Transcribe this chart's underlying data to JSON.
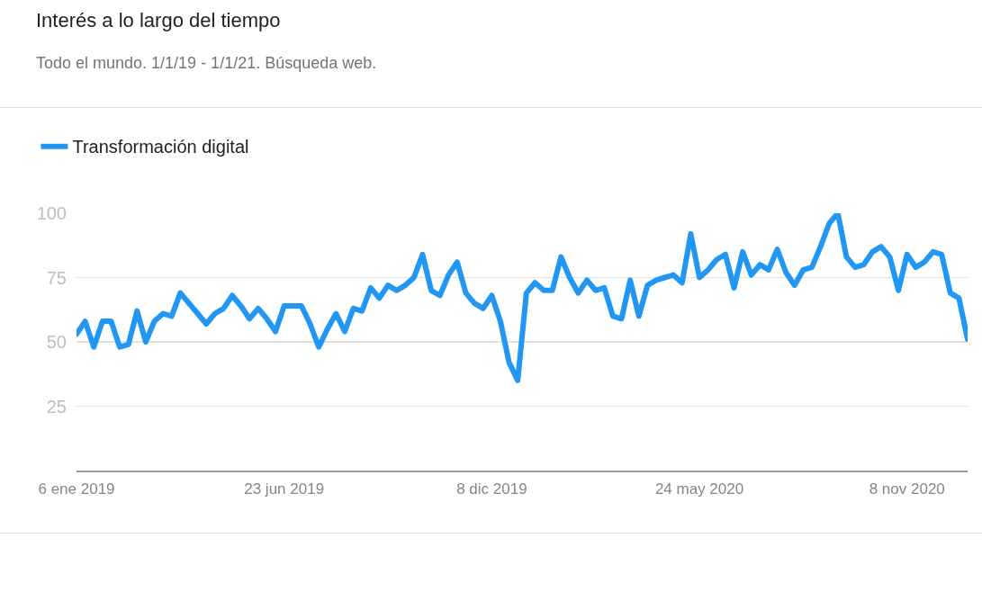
{
  "chart_data": {
    "type": "line",
    "title": "Interés a lo largo del tiempo",
    "subtitle": "Todo el mundo. 1/1/19 - 1/1/21. Búsqueda web.",
    "x": [
      "2019-01-06",
      "2019-01-13",
      "2019-01-20",
      "2019-01-27",
      "2019-02-03",
      "2019-02-10",
      "2019-02-17",
      "2019-02-24",
      "2019-03-03",
      "2019-03-10",
      "2019-03-17",
      "2019-03-24",
      "2019-03-31",
      "2019-04-07",
      "2019-04-14",
      "2019-04-21",
      "2019-04-28",
      "2019-05-05",
      "2019-05-12",
      "2019-05-19",
      "2019-05-26",
      "2019-06-02",
      "2019-06-09",
      "2019-06-16",
      "2019-06-23",
      "2019-06-30",
      "2019-07-07",
      "2019-07-14",
      "2019-07-21",
      "2019-07-28",
      "2019-08-04",
      "2019-08-11",
      "2019-08-18",
      "2019-08-25",
      "2019-09-01",
      "2019-09-08",
      "2019-09-15",
      "2019-09-22",
      "2019-09-29",
      "2019-10-06",
      "2019-10-13",
      "2019-10-20",
      "2019-10-27",
      "2019-11-03",
      "2019-11-10",
      "2019-11-17",
      "2019-11-24",
      "2019-12-01",
      "2019-12-08",
      "2019-12-15",
      "2019-12-22",
      "2019-12-29",
      "2020-01-05",
      "2020-01-12",
      "2020-01-19",
      "2020-01-26",
      "2020-02-02",
      "2020-02-09",
      "2020-02-16",
      "2020-02-23",
      "2020-03-01",
      "2020-03-08",
      "2020-03-15",
      "2020-03-22",
      "2020-03-29",
      "2020-04-05",
      "2020-04-12",
      "2020-04-19",
      "2020-04-26",
      "2020-05-03",
      "2020-05-10",
      "2020-05-17",
      "2020-05-24",
      "2020-05-31",
      "2020-06-07",
      "2020-06-14",
      "2020-06-21",
      "2020-06-28",
      "2020-07-05",
      "2020-07-12",
      "2020-07-19",
      "2020-07-26",
      "2020-08-02",
      "2020-08-09",
      "2020-08-16",
      "2020-08-23",
      "2020-08-30",
      "2020-09-06",
      "2020-09-13",
      "2020-09-20",
      "2020-09-27",
      "2020-10-04",
      "2020-10-11",
      "2020-10-18",
      "2020-10-25",
      "2020-11-01",
      "2020-11-08",
      "2020-11-15",
      "2020-11-22",
      "2020-11-29",
      "2020-12-06",
      "2020-12-13",
      "2020-12-20",
      "2020-12-27"
    ],
    "series": [
      {
        "name": "Transformación digital",
        "color": "#2196f3",
        "values": [
          53,
          58,
          48,
          58,
          58,
          48,
          49,
          62,
          50,
          58,
          61,
          60,
          69,
          65,
          61,
          57,
          61,
          63,
          68,
          64,
          59,
          63,
          59,
          54,
          64,
          64,
          64,
          57,
          48,
          55,
          61,
          54,
          63,
          62,
          71,
          67,
          72,
          70,
          72,
          75,
          84,
          70,
          68,
          76,
          81,
          69,
          65,
          63,
          68,
          58,
          42,
          35,
          69,
          73,
          70,
          70,
          83,
          75,
          69,
          74,
          70,
          71,
          60,
          59,
          74,
          60,
          72,
          74,
          75,
          76,
          73,
          92,
          75,
          78,
          82,
          84,
          71,
          85,
          76,
          80,
          78,
          86,
          77,
          72,
          78,
          79,
          87,
          96,
          100,
          83,
          79,
          80,
          85,
          87,
          83,
          70,
          84,
          79,
          81,
          85,
          84,
          69,
          67,
          51
        ]
      }
    ],
    "xlim": [
      "2019-01-06",
      "2020-12-27"
    ],
    "xticks": [
      {
        "value": "2019-01-06",
        "label": "6 ene 2019"
      },
      {
        "value": "2019-06-23",
        "label": "23 jun 2019"
      },
      {
        "value": "2019-12-08",
        "label": "8 dic 2019"
      },
      {
        "value": "2020-05-24",
        "label": "24 may 2020"
      },
      {
        "value": "2020-11-08",
        "label": "8 nov 2020"
      }
    ],
    "ylim": [
      0,
      100
    ],
    "yticks": [
      25,
      50,
      75,
      100
    ],
    "grid": "y",
    "legend": "top left"
  }
}
